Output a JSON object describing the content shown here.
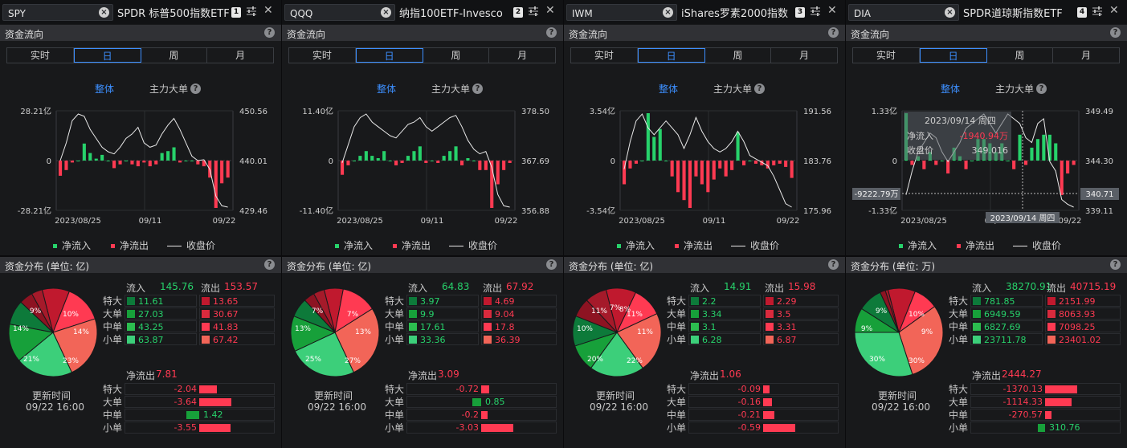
{
  "colors": {
    "inflow": "#27d26b",
    "outflow": "#ff3a52",
    "close": "#e8e8e8",
    "accent": "#3d8fff"
  },
  "labels": {
    "section_flow": "资金流向",
    "section_dist_prefix": "资金分布 (单位: ",
    "section_dist_suffix": ")",
    "tabs": [
      "实时",
      "日",
      "周",
      "月"
    ],
    "active_tab": "日",
    "mode_all": "整体",
    "mode_main": "主力大单",
    "legend_in": "净流入",
    "legend_out": "净流出",
    "legend_close": "收盘价",
    "inflow": "流入",
    "outflow": "流出",
    "netout": "净流出",
    "rows": [
      "特大",
      "大单",
      "中单",
      "小单"
    ],
    "updated": "更新时间",
    "updated_time": "09/22 16:00",
    "help": "?"
  },
  "panels": [
    {
      "symbol": "SPY",
      "name": "SPDR 标普500指数ETF",
      "index": "1",
      "unit": "亿",
      "y_left": {
        "top": "28.21亿",
        "mid": "0",
        "bot": "-28.21亿"
      },
      "y_right": {
        "top": "450.56",
        "mid": "440.01",
        "bot": "429.46"
      },
      "x_labels": [
        "2023/08/25",
        "09/11",
        "09/22"
      ],
      "pie": [
        {
          "p": 10,
          "c": "#c0192e"
        },
        {
          "p": 14,
          "c": "#ff3a52"
        },
        {
          "p": 23,
          "c": "#f26558"
        },
        {
          "p": 21,
          "c": "#3ccf7a"
        },
        {
          "p": 14,
          "c": "#17a03a"
        },
        {
          "p": 9,
          "c": "#0d7a3a"
        },
        {
          "p": 5,
          "c": "#8d1322"
        },
        {
          "p": 4,
          "c": "#a51a2a"
        }
      ],
      "pie_labels": [
        "10%",
        "14%",
        "23%",
        "21%",
        "14%",
        "9%"
      ],
      "inflow_total": "145.76",
      "outflow_total": "153.57",
      "in_vals": [
        "11.61",
        "27.03",
        "43.25",
        "63.87"
      ],
      "out_vals": [
        "13.65",
        "30.67",
        "41.83",
        "67.42"
      ],
      "net_total": "7.81",
      "net_vals": [
        "-2.04",
        "-3.64",
        "1.42",
        "-3.55"
      ],
      "chart_data": {
        "type": "bar",
        "net": [
          -8,
          -5,
          -1,
          0,
          9,
          4,
          1,
          3,
          0,
          -4,
          -2,
          0,
          -2,
          -3,
          -1,
          -3,
          -2,
          4,
          5,
          7,
          -1,
          0,
          0,
          -2,
          -3,
          -9,
          -25,
          -12,
          -9
        ],
        "close": [
          440,
          444,
          449,
          450.5,
          450,
          447,
          445,
          443,
          442,
          441.5,
          443,
          445,
          446,
          447.5,
          444,
          443,
          443.5,
          446,
          448,
          449.5,
          447,
          444,
          441,
          440,
          440.2,
          438,
          432,
          429.8,
          429.5
        ]
      }
    },
    {
      "symbol": "QQQ",
      "name": "纳指100ETF-Invesco",
      "index": "2",
      "unit": "亿",
      "y_left": {
        "top": "11.40亿",
        "mid": "0",
        "bot": "-11.40亿"
      },
      "y_right": {
        "top": "378.50",
        "mid": "367.69",
        "bot": "356.88"
      },
      "x_labels": [
        "2023/08/25",
        "09/11",
        "09/22"
      ],
      "pie": [
        {
          "p": 7,
          "c": "#c0192e"
        },
        {
          "p": 13,
          "c": "#ff3a52"
        },
        {
          "p": 27,
          "c": "#f26558"
        },
        {
          "p": 25,
          "c": "#3ccf7a"
        },
        {
          "p": 13,
          "c": "#17a03a"
        },
        {
          "p": 7,
          "c": "#0d7a3a"
        },
        {
          "p": 4,
          "c": "#8d1322"
        },
        {
          "p": 4,
          "c": "#a51a2a"
        }
      ],
      "pie_labels": [
        "7%",
        "13%",
        "27%",
        "25%",
        "13%",
        "7%"
      ],
      "inflow_total": "64.83",
      "outflow_total": "67.92",
      "in_vals": [
        "3.97",
        "9.9",
        "17.61",
        "33.36"
      ],
      "out_vals": [
        "4.69",
        "9.04",
        "17.8",
        "36.39"
      ],
      "net_total": "3.09",
      "net_vals": [
        "-0.72",
        "0.85",
        "-0.2",
        "-3.03"
      ],
      "chart_data": {
        "type": "bar",
        "net": [
          -3,
          -1,
          0,
          1,
          2,
          1,
          0.5,
          2,
          0,
          -1,
          -0.5,
          1,
          2,
          3,
          -0.5,
          0,
          -0.5,
          1,
          2,
          3,
          -1,
          0.5,
          0,
          -2,
          -2,
          -10,
          -5,
          -2,
          -0.5
        ],
        "close": [
          367,
          371,
          375,
          377,
          377.8,
          376,
          375,
          374,
          373,
          372.5,
          374,
          375.5,
          376,
          377,
          375,
          374,
          375,
          376,
          377,
          377.5,
          375,
          372,
          370,
          369,
          369.5,
          366,
          360,
          357.5,
          357.2
        ]
      }
    },
    {
      "symbol": "IWM",
      "name": "iShares罗素2000指数",
      "index": "3",
      "unit": "亿",
      "y_left": {
        "top": "3.54亿",
        "mid": "0",
        "bot": "-3.54亿"
      },
      "y_right": {
        "top": "191.56",
        "mid": "183.76",
        "bot": "175.96"
      },
      "x_labels": [
        "2023/08/25",
        "09/11",
        "09/22"
      ],
      "pie": [
        {
          "p": 11,
          "c": "#c0192e"
        },
        {
          "p": 11,
          "c": "#ff3a52"
        },
        {
          "p": 22,
          "c": "#f26558"
        },
        {
          "p": 20,
          "c": "#3ccf7a"
        },
        {
          "p": 10,
          "c": "#17a03a"
        },
        {
          "p": 11,
          "c": "#0d7a3a"
        },
        {
          "p": 7,
          "c": "#8d1322"
        },
        {
          "p": 8,
          "c": "#a51a2a"
        }
      ],
      "pie_labels": [
        "11%",
        "11%",
        "22%",
        "20%",
        "10%",
        "11%",
        "7%",
        "8%"
      ],
      "inflow_total": "14.91",
      "outflow_total": "15.98",
      "in_vals": [
        "2.2",
        "3.34",
        "3.1",
        "6.28"
      ],
      "out_vals": [
        "2.29",
        "3.5",
        "3.31",
        "6.87"
      ],
      "net_total": "1.06",
      "net_vals": [
        "-0.09",
        "-0.16",
        "-0.21",
        "-0.59"
      ],
      "chart_data": {
        "type": "bar",
        "net": [
          -1.5,
          -0.5,
          -0.2,
          0,
          3,
          1.5,
          2,
          0,
          -1,
          -2,
          -2.5,
          -3,
          -1,
          -1.5,
          -2,
          -1.2,
          -0.5,
          -1,
          -0.6,
          1.8,
          -0.3,
          0,
          -0.2,
          -0.3,
          -0.5,
          -0.3,
          -0.2,
          -0.4,
          -1.1
        ],
        "close": [
          182,
          186,
          189,
          190,
          188,
          187,
          188,
          189,
          188,
          187,
          185,
          187,
          189.5,
          187.5,
          186,
          185,
          184.5,
          185,
          186,
          187.5,
          186,
          184,
          183.5,
          183,
          182.5,
          181,
          179,
          177,
          176.5
        ]
      }
    },
    {
      "symbol": "DIA",
      "name": "SPDR道琼斯指数ETF",
      "index": "4",
      "unit": "万",
      "y_left": {
        "top": "1.33亿",
        "mid": "0",
        "bot": "-1.33亿"
      },
      "y_right": {
        "top": "349.49",
        "mid": "344.30",
        "bot": "339.11"
      },
      "x_labels": [
        "2023/08/25",
        "09/11",
        "09/22"
      ],
      "crosshair": {
        "date": "2023/09/14 周四",
        "in_label": "净流入",
        "in_value": "-1940.94万",
        "close_label": "收盘价",
        "close_value": "349.016",
        "left_value": "-9222.79万",
        "right_value": "340.71",
        "bottom_date": "2023/09/14 周四"
      },
      "pie": [
        {
          "p": 10,
          "c": "#c0192e"
        },
        {
          "p": 9,
          "c": "#ff3a52"
        },
        {
          "p": 30,
          "c": "#f26558"
        },
        {
          "p": 30,
          "c": "#3ccf7a"
        },
        {
          "p": 9,
          "c": "#17a03a"
        },
        {
          "p": 9,
          "c": "#0d7a3a"
        },
        {
          "p": 2,
          "c": "#8d1322"
        },
        {
          "p": 1,
          "c": "#a51a2a"
        }
      ],
      "pie_labels": [
        "10%",
        "9%",
        "30%",
        "30%",
        "9%",
        "9%"
      ],
      "inflow_total": "38270.91",
      "outflow_total": "40715.19",
      "in_vals": [
        "781.85",
        "6949.59",
        "6827.69",
        "23711.78"
      ],
      "out_vals": [
        "2151.99",
        "8063.93",
        "7098.25",
        "23401.02"
      ],
      "net_total": "2444.27",
      "net_vals": [
        "-1370.13",
        "-1114.33",
        "-270.57",
        "310.76"
      ],
      "chart_data": {
        "type": "bar",
        "net": [
          1.1,
          -0.1,
          0.1,
          -0.2,
          0.2,
          -0.1,
          0,
          -0.3,
          0.3,
          0.1,
          -0.2,
          0,
          0.5,
          0.5,
          0.4,
          0.2,
          0.4,
          0,
          -0.2,
          0.6,
          -0.1,
          0.3,
          0.5,
          0.6,
          0.6,
          0.4,
          -0.8,
          -0.3,
          -0.1
        ],
        "close": [
          340.5,
          343,
          345,
          346,
          347,
          346.5,
          345,
          344,
          345,
          346,
          347.5,
          348,
          348.5,
          349,
          348,
          347,
          348,
          349,
          348.5,
          348,
          346.5,
          346,
          348,
          348.5,
          344,
          343,
          340,
          339.5,
          339.2
        ]
      }
    }
  ]
}
